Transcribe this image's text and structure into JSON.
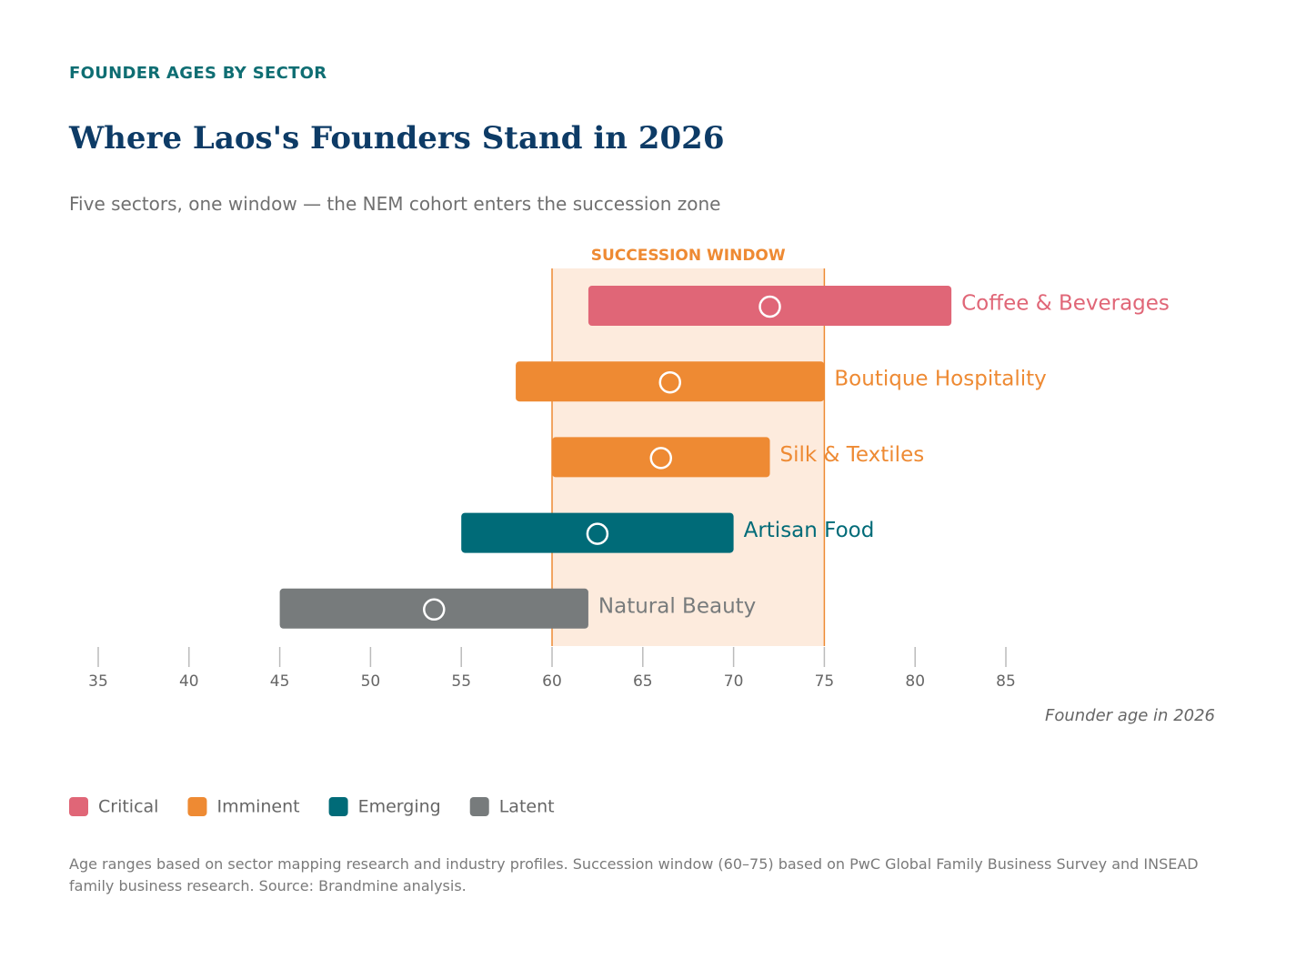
{
  "chart_data": {
    "type": "range-bar",
    "eyebrow": "FOUNDER AGES BY SECTOR",
    "title": "Where Laos's Founders Stand in 2026",
    "subtitle": "Five sectors, one window — the NEM cohort enters the succession zone",
    "categories": [
      "Coffee & Beverages",
      "Boutique Hospitality",
      "Silk & Textiles",
      "Artisan Food",
      "Natural Beauty"
    ],
    "starts": [
      62,
      58,
      60,
      55,
      45
    ],
    "ends": [
      82,
      75,
      72,
      70,
      62
    ],
    "medians": [
      72,
      66.5,
      66,
      62.5,
      53.5
    ],
    "status": [
      "Critical",
      "Imminent",
      "Imminent",
      "Emerging",
      "Latent"
    ],
    "legend": [
      {
        "name": "Critical",
        "color": "#e06677"
      },
      {
        "name": "Imminent",
        "color": "#ee8a33"
      },
      {
        "name": "Emerging",
        "color": "#006b78"
      },
      {
        "name": "Latent",
        "color": "#777b7c"
      }
    ],
    "window": {
      "label": "SUCCESSION WINDOW",
      "range": [
        60,
        75
      ]
    },
    "xlim": [
      35,
      85
    ],
    "xticks": [
      35,
      40,
      45,
      50,
      55,
      60,
      65,
      70,
      75,
      80,
      85
    ],
    "xlabel": "Founder age in 2026",
    "footnote": "Age ranges based on sector mapping research and industry profiles. Succession window (60–75) based on PwC Global Family Business Survey and INSEAD family business research. Source: Brandmine analysis."
  }
}
